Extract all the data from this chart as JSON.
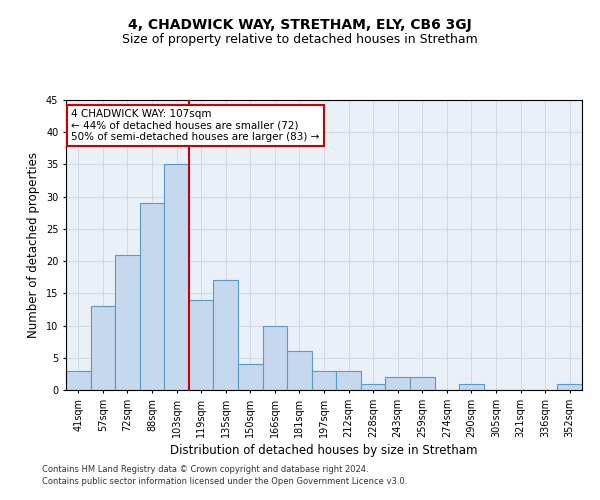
{
  "title": "4, CHADWICK WAY, STRETHAM, ELY, CB6 3GJ",
  "subtitle": "Size of property relative to detached houses in Stretham",
  "xlabel": "Distribution of detached houses by size in Stretham",
  "ylabel": "Number of detached properties",
  "categories": [
    "41sqm",
    "57sqm",
    "72sqm",
    "88sqm",
    "103sqm",
    "119sqm",
    "135sqm",
    "150sqm",
    "166sqm",
    "181sqm",
    "197sqm",
    "212sqm",
    "228sqm",
    "243sqm",
    "259sqm",
    "274sqm",
    "290sqm",
    "305sqm",
    "321sqm",
    "336sqm",
    "352sqm"
  ],
  "values": [
    3,
    13,
    21,
    29,
    35,
    14,
    17,
    4,
    10,
    6,
    3,
    3,
    1,
    2,
    2,
    0,
    1,
    0,
    0,
    0,
    1
  ],
  "bar_color": "#c5d8ed",
  "bar_edge_color": "#5a9ac8",
  "red_line_x": 4.5,
  "annotation_text": "4 CHADWICK WAY: 107sqm\n← 44% of detached houses are smaller (72)\n50% of semi-detached houses are larger (83) →",
  "annotation_box_color": "#ffffff",
  "annotation_box_edge_color": "#cc0000",
  "red_line_color": "#cc0000",
  "ylim": [
    0,
    45
  ],
  "yticks": [
    0,
    5,
    10,
    15,
    20,
    25,
    30,
    35,
    40,
    45
  ],
  "grid_color": "#d0d8e8",
  "background_color": "#eaf0f8",
  "footer_line1": "Contains HM Land Registry data © Crown copyright and database right 2024.",
  "footer_line2": "Contains public sector information licensed under the Open Government Licence v3.0.",
  "title_fontsize": 10,
  "subtitle_fontsize": 9,
  "tick_fontsize": 7,
  "label_fontsize": 8.5,
  "annotation_fontsize": 7.5,
  "footer_fontsize": 6
}
